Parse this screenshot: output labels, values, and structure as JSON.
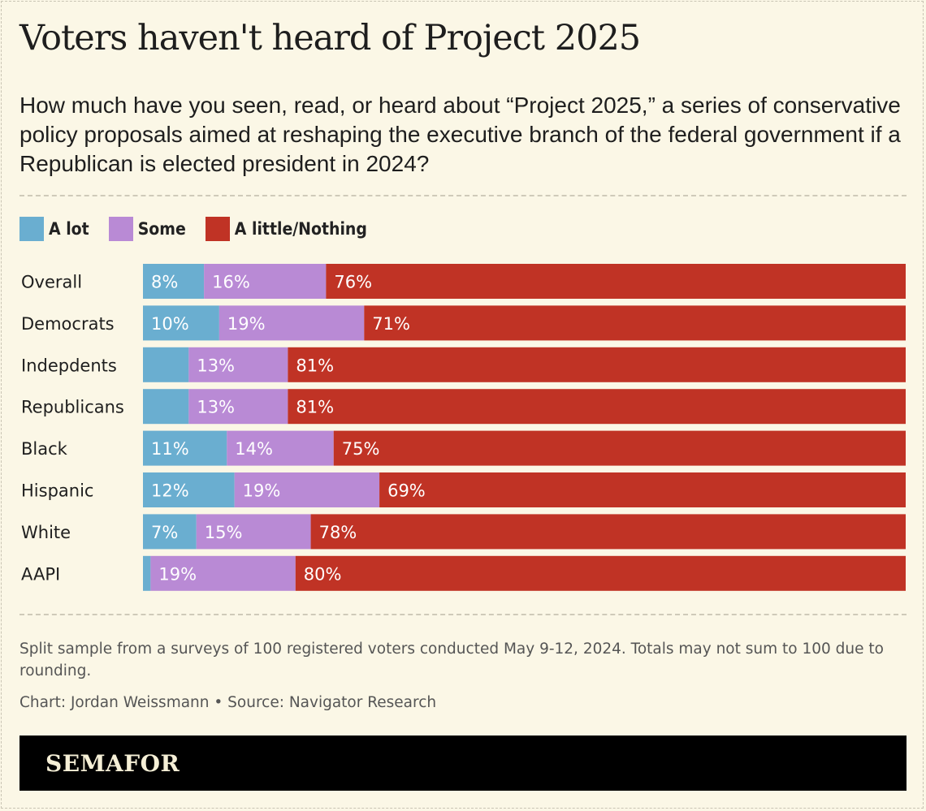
{
  "title": "Voters haven't heard of Project 2025",
  "subtitle": "How much have you seen, read, or heard about “Project 2025,” a series of conservative policy proposals aimed at reshaping the executive branch of the federal government if a Republican is elected president in 2024?",
  "note": "Split sample from a surveys of 100 registered voters conducted May 9-12, 2024. Totals may not sum to 100 due to rounding.",
  "credit": "Chart: Jordan Weissmann • Source: Navigator Research",
  "brand": "SEMAFOR",
  "colors": {
    "a_lot": "#6aaed0",
    "some": "#b98ad5",
    "little": "#c03325",
    "background": "#fbf7e6"
  },
  "chart_data": {
    "type": "bar",
    "orientation": "horizontal",
    "stacked": true,
    "title": "Voters haven't heard of Project 2025",
    "legend_position": "top-left",
    "xlim": [
      0,
      100
    ],
    "categories": [
      "Overall",
      "Democrats",
      "Indepdents",
      "Republicans",
      "Black",
      "Hispanic",
      "White",
      "AAPI"
    ],
    "series": [
      {
        "key": "a_lot",
        "name": "A lot",
        "values": [
          8,
          10,
          6,
          6,
          11,
          12,
          7,
          1
        ],
        "labels": [
          "8%",
          "10%",
          "",
          "",
          "11%",
          "12%",
          "7%",
          ""
        ]
      },
      {
        "key": "some",
        "name": "Some",
        "values": [
          16,
          19,
          13,
          13,
          14,
          19,
          15,
          19
        ],
        "labels": [
          "16%",
          "19%",
          "13%",
          "13%",
          "14%",
          "19%",
          "15%",
          "19%"
        ]
      },
      {
        "key": "little",
        "name": "A little/Nothing",
        "values": [
          76,
          71,
          81,
          81,
          75,
          69,
          78,
          80
        ],
        "labels": [
          "76%",
          "71%",
          "81%",
          "81%",
          "75%",
          "69%",
          "78%",
          "80%"
        ]
      }
    ]
  }
}
